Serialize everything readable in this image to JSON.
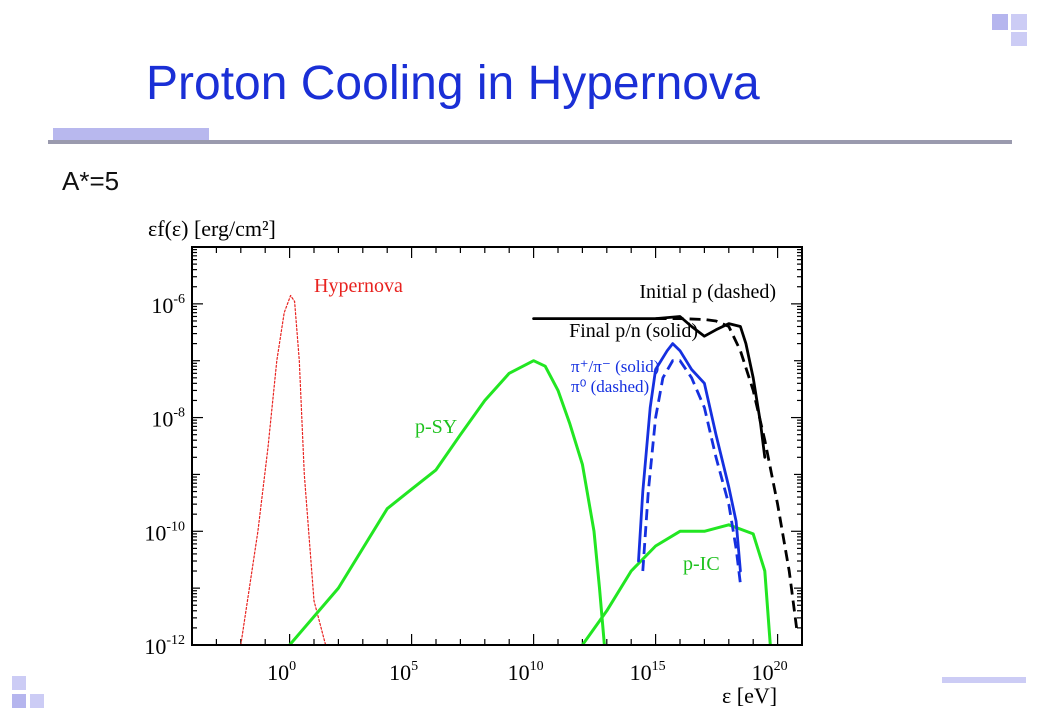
{
  "slide": {
    "title": "Proton Cooling in Hypernova",
    "subtitle": "A*=5"
  },
  "colors": {
    "title": "#1a2fd6",
    "decoration": "#ccccf5",
    "rule": "#9a9aae"
  },
  "chart_data": {
    "type": "line",
    "xlabel": "ε [eV]",
    "ylabel": "εf(ε) [erg/cm²]",
    "x_scale": "log",
    "y_scale": "log",
    "xlim": [
      0.0001,
      1e+21
    ],
    "ylim": [
      1e-12,
      1e-05
    ],
    "x_ticks": [
      {
        "value": 1,
        "base": "10",
        "exp": "0"
      },
      {
        "value": 100000.0,
        "base": "10",
        "exp": "5"
      },
      {
        "value": 10000000000.0,
        "base": "10",
        "exp": "10"
      },
      {
        "value": 1000000000000000.0,
        "base": "10",
        "exp": "15"
      },
      {
        "value": 1e+20,
        "base": "10",
        "exp": "20"
      }
    ],
    "y_ticks": [
      {
        "value": 1e-06,
        "base": "10",
        "exp": "-6"
      },
      {
        "value": 1e-08,
        "base": "10",
        "exp": "-8"
      },
      {
        "value": 1e-10,
        "base": "10",
        "exp": "-10"
      },
      {
        "value": 1e-12,
        "base": "10",
        "exp": "-12"
      }
    ],
    "grid": false,
    "series": [
      {
        "name": "Hypernova",
        "color": "#e8221f",
        "style": "dotted",
        "points": [
          [
            0.01,
            1e-12
          ],
          [
            0.05,
            1e-10
          ],
          [
            0.13,
            3e-09
          ],
          [
            0.3,
            1e-07
          ],
          [
            0.6,
            7e-07
          ],
          [
            1.1,
            1.4e-06
          ],
          [
            1.6,
            1.1e-06
          ],
          [
            2.5,
            1e-07
          ],
          [
            4,
            1e-09
          ],
          [
            10,
            6e-12
          ],
          [
            30,
            1e-12
          ]
        ]
      },
      {
        "name": "p-SY",
        "color": "#22e622",
        "style": "solid",
        "points": [
          [
            1,
            1e-12
          ],
          [
            100,
            1e-11
          ],
          [
            10000.0,
            2.5e-10
          ],
          [
            100000.0,
            5.5e-10
          ],
          [
            1000000.0,
            1.2e-09
          ],
          [
            10000000.0,
            5e-09
          ],
          [
            100000000.0,
            2e-08
          ],
          [
            1000000000.0,
            6e-08
          ],
          [
            10000000000.0,
            1e-07
          ],
          [
            30000000000.0,
            8e-08
          ],
          [
            100000000000.0,
            3e-08
          ],
          [
            300000000000.0,
            8e-09
          ],
          [
            1000000000000.0,
            1.5e-09
          ],
          [
            3000000000000.0,
            1e-10
          ],
          [
            5000000000000.0,
            1e-11
          ],
          [
            8000000000000.0,
            1e-12
          ]
        ]
      },
      {
        "name": "p-IC",
        "color": "#22e622",
        "style": "solid",
        "points": [
          [
            1000000000000.0,
            1e-12
          ],
          [
            10000000000000.0,
            4e-12
          ],
          [
            100000000000000.0,
            2e-11
          ],
          [
            1000000000000000.0,
            5.5e-11
          ],
          [
            1e+16,
            1e-10
          ],
          [
            1e+17,
            1e-10
          ],
          [
            1e+18,
            1.3e-10
          ],
          [
            1e+19,
            9e-11
          ],
          [
            3e+19,
            2e-11
          ],
          [
            5e+19,
            1e-12
          ]
        ]
      },
      {
        "name": "π+/π− (solid)",
        "color": "#1530e0",
        "style": "solid",
        "points": [
          [
            200000000000000.0,
            3e-11
          ],
          [
            300000000000000.0,
            5e-10
          ],
          [
            600000000000000.0,
            1.5e-08
          ],
          [
            1000000000000000.0,
            7e-08
          ],
          [
            3000000000000000.0,
            1.5e-07
          ],
          [
            5000000000000000.0,
            2e-07
          ],
          [
            1e+16,
            1.5e-07
          ],
          [
            3e+16,
            7e-08
          ],
          [
            1e+17,
            4e-08
          ],
          [
            3e+17,
            5e-09
          ],
          [
            1e+18,
            6e-10
          ],
          [
            2e+18,
            1.5e-10
          ],
          [
            3e+18,
            2e-11
          ]
        ]
      },
      {
        "name": "π0 (dashed)",
        "color": "#1530e0",
        "style": "dashed",
        "points": [
          [
            300000000000000.0,
            2e-11
          ],
          [
            500000000000000.0,
            5e-10
          ],
          [
            1000000000000000.0,
            1e-08
          ],
          [
            2000000000000000.0,
            5e-08
          ],
          [
            5000000000000000.0,
            1e-07
          ],
          [
            1e+16,
            1e-07
          ],
          [
            3e+16,
            5e-08
          ],
          [
            1e+17,
            1.5e-08
          ],
          [
            3e+17,
            2e-09
          ],
          [
            1e+18,
            3e-10
          ],
          [
            2e+18,
            5e-11
          ],
          [
            3e+18,
            1.2e-11
          ]
        ]
      },
      {
        "name": "Initial p (dashed)",
        "color": "#000000",
        "style": "dashed",
        "points": [
          [
            1000000000000000.0,
            5.5e-07
          ],
          [
            1e+16,
            5.5e-07
          ],
          [
            1e+17,
            5.3e-07
          ],
          [
            3e+17,
            5e-07
          ],
          [
            1e+18,
            4e-07
          ],
          [
            3e+18,
            1.5e-07
          ],
          [
            1e+19,
            3e-08
          ],
          [
            3e+19,
            4e-09
          ],
          [
            1e+20,
            3e-10
          ],
          [
            3e+20,
            2e-11
          ],
          [
            6e+20,
            2e-12
          ]
        ]
      },
      {
        "name": "Final p/n (solid)",
        "color": "#000000",
        "style": "solid",
        "points": [
          [
            10000000000.0,
            5.5e-07
          ],
          [
            1000000000000000.0,
            5.5e-07
          ],
          [
            1e+16,
            6e-07
          ],
          [
            3e+16,
            4e-07
          ],
          [
            1e+17,
            2.7e-07
          ],
          [
            3e+17,
            3.5e-07
          ],
          [
            1e+18,
            4.5e-07
          ],
          [
            3e+18,
            4e-07
          ],
          [
            5e+18,
            2e-07
          ],
          [
            1e+19,
            5e-08
          ],
          [
            2e+19,
            8e-09
          ],
          [
            3e+19,
            2e-09
          ]
        ]
      }
    ],
    "annotations": [
      {
        "id": "hypernova",
        "text": "Hypernova",
        "color": "#e8221f"
      },
      {
        "id": "initial",
        "text": "Initial p (dashed)",
        "color": "#000000"
      },
      {
        "id": "final",
        "text": "Final p/n (solid)",
        "color": "#000000"
      },
      {
        "id": "pi1",
        "text": "π⁺/π⁻ (solid)",
        "color": "#1530e0"
      },
      {
        "id": "pi2",
        "text": "π⁰ (dashed)",
        "color": "#1530e0"
      },
      {
        "id": "psy",
        "text": "p-SY",
        "color": "#1fc21f"
      },
      {
        "id": "pic",
        "text": "p-IC",
        "color": "#1fc21f"
      }
    ]
  }
}
